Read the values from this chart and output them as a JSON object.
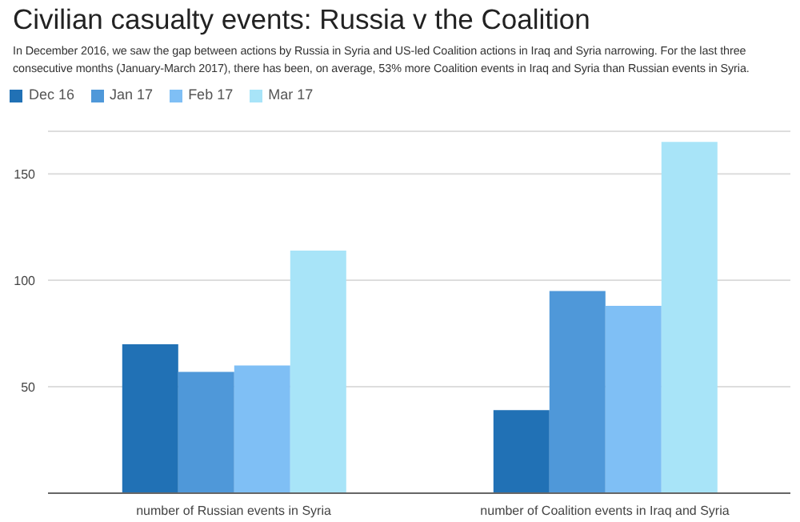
{
  "chart_data": {
    "type": "bar",
    "title": "Civilian casualty events: Russia v the Coalition",
    "subtitle": "In December 2016, we saw the gap between actions by Russia in Syria and US-led Coalition actions in Iraq and Syria narrowing. For the last three consecutive months (January-March 2017), there has been, on average, 53% more Coalition events in Iraq and Syria than Russian events in Syria.",
    "categories": [
      "number of Russian events in Syria",
      "number of Coalition events in Iraq and Syria"
    ],
    "series": [
      {
        "name": "Dec 16",
        "color": "#2171b5",
        "values": [
          70,
          39
        ]
      },
      {
        "name": "Jan 17",
        "color": "#4f98d9",
        "values": [
          57,
          95
        ]
      },
      {
        "name": "Feb 17",
        "color": "#7fbff5",
        "values": [
          60,
          88
        ]
      },
      {
        "name": "Mar 17",
        "color": "#a8e4f8",
        "values": [
          114,
          165
        ]
      }
    ],
    "ylim": [
      0,
      170
    ],
    "yticks": [
      {
        "value": 0,
        "label": null
      },
      50,
      100,
      150
    ],
    "grid": "y",
    "legend": "top left"
  }
}
